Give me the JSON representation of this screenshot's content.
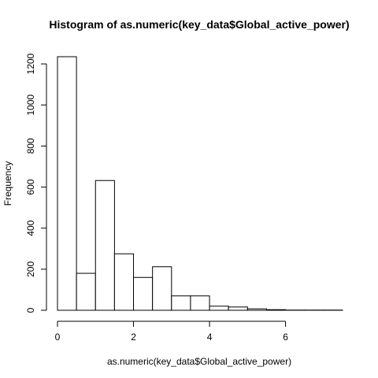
{
  "chart_data": {
    "type": "bar",
    "title": "Histogram of as.numeric(key_data$Global_active_power)",
    "xlabel": "as.numeric(key_data$Global_active_power)",
    "ylabel": "Frequency",
    "bin_edges": [
      0,
      0.5,
      1,
      1.5,
      2,
      2.5,
      3,
      3.5,
      4,
      4.5,
      5,
      5.5,
      6,
      6.5,
      7,
      7.5
    ],
    "values": [
      1235,
      180,
      632,
      275,
      160,
      212,
      70,
      70,
      20,
      16,
      7,
      3,
      1,
      1,
      1
    ],
    "xlim": [
      0,
      7.5
    ],
    "ylim": [
      0,
      1235
    ],
    "x_ticks": [
      "0",
      "2",
      "4",
      "6"
    ],
    "y_ticks": [
      "0",
      "200",
      "400",
      "600",
      "800",
      "1000",
      "1200"
    ],
    "grid": false,
    "legend": "none"
  }
}
